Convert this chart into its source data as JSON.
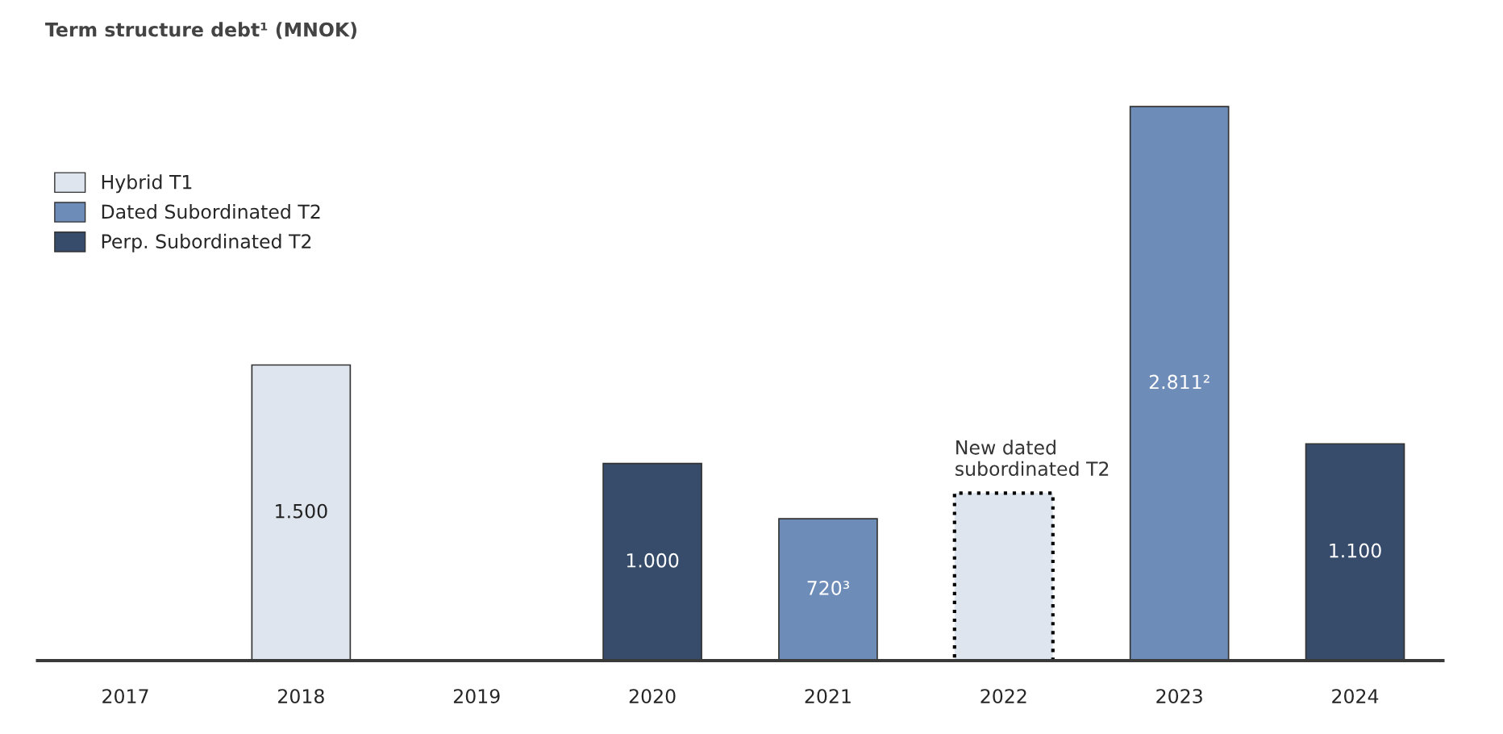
{
  "chart_data": {
    "type": "bar",
    "title": "Term structure debt¹ (MNOK)",
    "categories": [
      "2017",
      "2018",
      "2019",
      "2020",
      "2021",
      "2022",
      "2023",
      "2024"
    ],
    "series": [
      {
        "name": "Hybrid T1",
        "color": "#dfe5ef",
        "values": [
          null,
          1500,
          null,
          null,
          null,
          null,
          null,
          null
        ],
        "value_labels": [
          null,
          "1.500",
          null,
          null,
          null,
          null,
          null,
          null
        ]
      },
      {
        "name": "Dated Subordinated T2",
        "color": "#6e8cb8",
        "values": [
          null,
          null,
          null,
          null,
          720,
          null,
          2811,
          null
        ],
        "value_labels": [
          null,
          null,
          null,
          null,
          "720³",
          null,
          "2.811²",
          null
        ]
      },
      {
        "name": "Perp. Subordinated T2",
        "color": "#374c6b",
        "values": [
          null,
          null,
          null,
          1000,
          null,
          null,
          null,
          1100
        ],
        "value_labels": [
          null,
          null,
          null,
          "1.000",
          null,
          null,
          null,
          "1.100"
        ]
      },
      {
        "color": "#dfe5ef",
        "line_style": "dotted",
        "values": [
          null,
          null,
          null,
          null,
          null,
          850,
          null,
          null
        ]
      }
    ],
    "stacked": true,
    "tick_labels": "x",
    "grid": false,
    "legend": "top left",
    "annotations": [
      {
        "text": "New dated\nsubordinated T2",
        "x": "2022",
        "y": 850
      }
    ]
  }
}
